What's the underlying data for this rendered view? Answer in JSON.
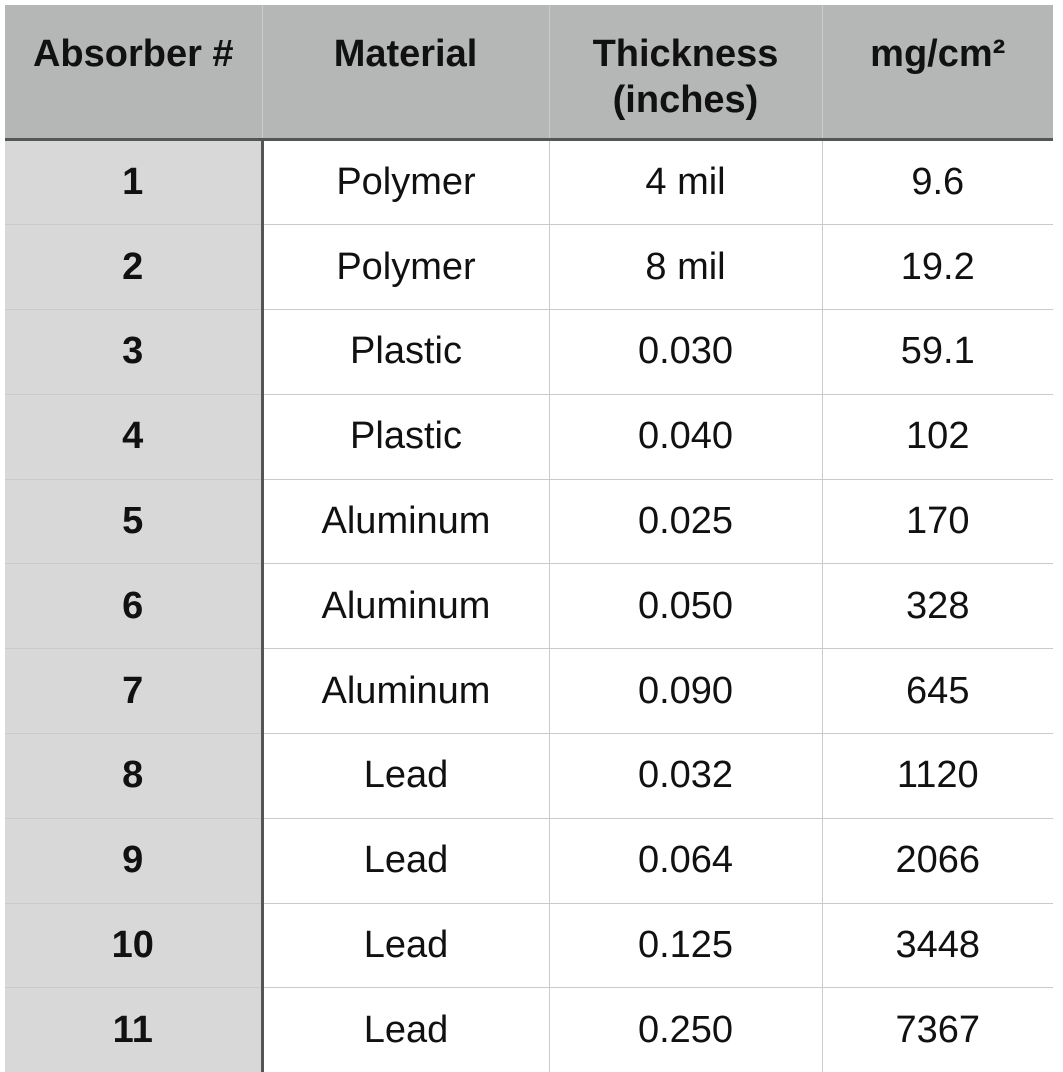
{
  "headers": {
    "absorber": "Absorber #",
    "material": "Material",
    "thickness": "Thickness (inches)",
    "density": "mg/cm²"
  },
  "rows": [
    {
      "absorber": "1",
      "material": "Polymer",
      "thickness": "4 mil",
      "density": "9.6"
    },
    {
      "absorber": "2",
      "material": "Polymer",
      "thickness": "8 mil",
      "density": "19.2"
    },
    {
      "absorber": "3",
      "material": "Plastic",
      "thickness": "0.030",
      "density": "59.1"
    },
    {
      "absorber": "4",
      "material": "Plastic",
      "thickness": "0.040",
      "density": "102"
    },
    {
      "absorber": "5",
      "material": "Aluminum",
      "thickness": "0.025",
      "density": "170"
    },
    {
      "absorber": "6",
      "material": "Aluminum",
      "thickness": "0.050",
      "density": "328"
    },
    {
      "absorber": "7",
      "material": "Aluminum",
      "thickness": "0.090",
      "density": "645"
    },
    {
      "absorber": "8",
      "material": "Lead",
      "thickness": "0.032",
      "density": "1120"
    },
    {
      "absorber": "9",
      "material": "Lead",
      "thickness": "0.064",
      "density": "2066"
    },
    {
      "absorber": "10",
      "material": "Lead",
      "thickness": "0.125",
      "density": "3448"
    },
    {
      "absorber": "11",
      "material": "Lead",
      "thickness": "0.250",
      "density": "7367"
    }
  ],
  "colors": {
    "header_bg": "#b4b7b5",
    "first_col_bg": "#d8d8d8",
    "cell_bg": "#ffffff",
    "grid_line": "#c9cbca",
    "heavy_line": "#555555"
  }
}
